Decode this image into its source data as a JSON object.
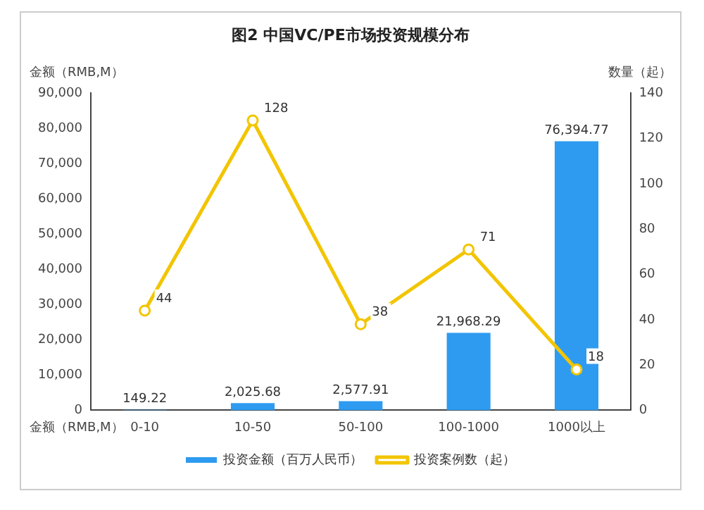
{
  "chart_data": {
    "type": "bar",
    "title": "图2 中国VC/PE市场投资规模分布",
    "xlabel": "金额（RMB,M）",
    "ylabel": "金额（RMB,M）",
    "y2label": "数量（起）",
    "categories": [
      "0-10",
      "10-50",
      "50-100",
      "100-1000",
      "1000以上"
    ],
    "series": [
      {
        "name": "投资金额（百万人民币）",
        "color": "#2e9bf0",
        "values": [
          149.22,
          2025.68,
          2577.91,
          21968.29,
          76394.77
        ],
        "value_labels": [
          "149.22",
          "2,025.68",
          "2,577.91",
          "21,968.29",
          "76,394.77"
        ]
      },
      {
        "name": "投资案例数（起）",
        "type": "line",
        "axis": "y2",
        "color": "#f2c500",
        "values": [
          44,
          128,
          38,
          71,
          18
        ],
        "value_labels": [
          "44",
          "128",
          "38",
          "71",
          "18"
        ]
      }
    ],
    "ylim": [
      0,
      90000
    ],
    "yticks": [
      0,
      {
        "value": 10000,
        "label": "10,000"
      },
      {
        "value": 20000,
        "label": "20,000"
      },
      {
        "value": 30000,
        "label": "30,000"
      },
      {
        "value": 40000,
        "label": "40,000"
      },
      {
        "value": 50000,
        "label": "50,000"
      },
      {
        "value": 60000,
        "label": "60,000"
      },
      {
        "value": 70000,
        "label": "70,000"
      },
      {
        "value": 80000,
        "label": "80,000"
      },
      {
        "value": 90000,
        "label": "90,000"
      }
    ],
    "y2lim": [
      0,
      140
    ],
    "y2ticks": [
      0,
      20,
      40,
      60,
      80,
      100,
      120,
      140
    ],
    "grid": false,
    "legend": "bottom",
    "marker": "circle",
    "line_style": "solid"
  }
}
